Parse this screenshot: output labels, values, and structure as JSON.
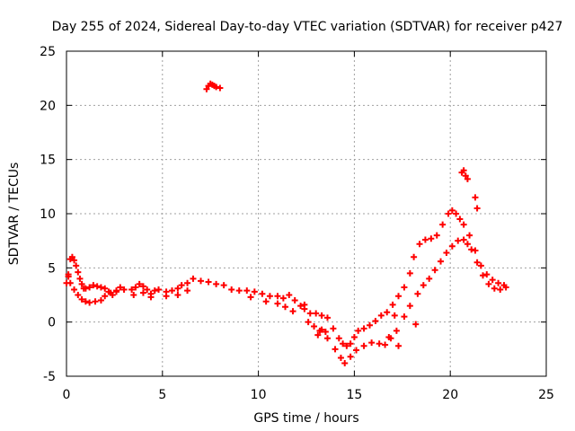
{
  "chart_data": {
    "type": "scatter",
    "title": "Day 255 of 2024, Sidereal Day-to-day VTEC variation (SDTVAR) for receiver p427",
    "xlabel": "GPS time / hours",
    "ylabel": "SDTVAR / TECUs",
    "xlim": [
      0,
      25
    ],
    "ylim": [
      -5,
      25
    ],
    "xticks": [
      0,
      5,
      10,
      15,
      20,
      25
    ],
    "yticks": [
      -5,
      0,
      5,
      10,
      15,
      20,
      25
    ],
    "grid": true,
    "marker": "plus",
    "color": "#ff0000",
    "series": [
      {
        "name": "main track",
        "points": [
          [
            0.0,
            3.6
          ],
          [
            0.1,
            4.2
          ],
          [
            0.2,
            5.8
          ],
          [
            0.3,
            6.0
          ],
          [
            0.4,
            5.7
          ],
          [
            0.5,
            5.2
          ],
          [
            0.6,
            4.6
          ],
          [
            0.7,
            4.0
          ],
          [
            0.8,
            3.5
          ],
          [
            0.9,
            3.1
          ],
          [
            1.0,
            3.1
          ],
          [
            1.2,
            3.2
          ],
          [
            1.4,
            3.4
          ],
          [
            1.6,
            3.3
          ],
          [
            1.8,
            3.2
          ],
          [
            2.0,
            3.1
          ],
          [
            2.2,
            2.8
          ],
          [
            2.4,
            2.5
          ],
          [
            2.6,
            2.9
          ],
          [
            2.8,
            3.2
          ],
          [
            3.0,
            3.0
          ],
          [
            3.4,
            3.0
          ],
          [
            3.6,
            3.2
          ],
          [
            3.8,
            3.5
          ],
          [
            4.0,
            3.3
          ],
          [
            4.2,
            3.0
          ],
          [
            4.4,
            2.6
          ],
          [
            4.6,
            2.9
          ],
          [
            4.8,
            3.0
          ],
          [
            5.2,
            2.8
          ],
          [
            5.5,
            2.9
          ],
          [
            5.8,
            3.1
          ],
          [
            6.0,
            3.4
          ],
          [
            6.3,
            3.6
          ],
          [
            6.6,
            4.0
          ],
          [
            7.0,
            3.8
          ],
          [
            7.4,
            3.7
          ],
          [
            7.8,
            3.5
          ],
          [
            8.2,
            3.4
          ],
          [
            8.6,
            3.0
          ],
          [
            9.0,
            2.9
          ],
          [
            9.4,
            2.9
          ],
          [
            9.8,
            2.8
          ],
          [
            10.2,
            2.6
          ],
          [
            10.6,
            2.4
          ],
          [
            11.0,
            2.4
          ],
          [
            11.3,
            2.2
          ],
          [
            11.6,
            2.5
          ],
          [
            11.9,
            2.0
          ],
          [
            12.2,
            1.5
          ],
          [
            12.4,
            1.2
          ],
          [
            12.7,
            0.8
          ],
          [
            13.0,
            0.8
          ],
          [
            13.3,
            0.6
          ],
          [
            13.6,
            0.4
          ],
          [
            13.9,
            -0.6
          ],
          [
            14.2,
            -1.5
          ],
          [
            14.4,
            -2.0
          ],
          [
            14.6,
            -2.2
          ],
          [
            14.8,
            -2.0
          ],
          [
            15.0,
            -1.4
          ],
          [
            15.2,
            -0.8
          ],
          [
            15.5,
            -0.6
          ],
          [
            15.8,
            -0.3
          ],
          [
            16.1,
            0.1
          ],
          [
            16.4,
            0.6
          ],
          [
            16.7,
            0.9
          ],
          [
            17.0,
            1.6
          ],
          [
            17.3,
            2.4
          ],
          [
            17.6,
            3.2
          ],
          [
            17.9,
            4.5
          ],
          [
            18.1,
            6.0
          ],
          [
            18.4,
            7.2
          ],
          [
            18.7,
            7.6
          ],
          [
            19.0,
            7.7
          ],
          [
            19.3,
            8.0
          ],
          [
            19.6,
            9.0
          ],
          [
            19.9,
            10.0
          ],
          [
            20.1,
            10.3
          ],
          [
            20.3,
            10.0
          ],
          [
            20.5,
            9.5
          ],
          [
            20.7,
            9.0
          ],
          [
            21.0,
            8.0
          ],
          [
            21.3,
            6.6
          ],
          [
            21.6,
            5.2
          ],
          [
            21.9,
            4.4
          ],
          [
            22.2,
            3.9
          ],
          [
            22.5,
            3.6
          ],
          [
            22.8,
            3.4
          ]
        ]
      },
      {
        "name": "lower track",
        "points": [
          [
            0.1,
            4.4
          ],
          [
            0.2,
            3.6
          ],
          [
            0.4,
            3.0
          ],
          [
            0.6,
            2.5
          ],
          [
            0.8,
            2.1
          ],
          [
            1.0,
            1.9
          ],
          [
            1.2,
            1.8
          ],
          [
            1.5,
            1.9
          ],
          [
            1.8,
            2.0
          ],
          [
            2.0,
            2.4
          ],
          [
            2.3,
            2.7
          ],
          [
            2.6,
            2.8
          ],
          [
            3.5,
            2.5
          ],
          [
            4.0,
            2.7
          ],
          [
            4.4,
            2.3
          ],
          [
            5.2,
            2.4
          ],
          [
            5.8,
            2.5
          ],
          [
            6.3,
            2.9
          ],
          [
            9.6,
            2.3
          ],
          [
            10.4,
            1.9
          ],
          [
            11.0,
            1.7
          ],
          [
            11.4,
            1.4
          ],
          [
            11.8,
            1.0
          ],
          [
            12.6,
            0.0
          ],
          [
            12.9,
            -0.4
          ],
          [
            13.2,
            -0.8
          ],
          [
            13.6,
            -1.5
          ],
          [
            14.0,
            -2.5
          ],
          [
            14.3,
            -3.3
          ],
          [
            14.5,
            -3.8
          ],
          [
            14.8,
            -3.2
          ],
          [
            15.1,
            -2.6
          ],
          [
            15.5,
            -2.2
          ],
          [
            15.9,
            -1.9
          ],
          [
            16.3,
            -2.0
          ],
          [
            16.6,
            -2.1
          ],
          [
            16.9,
            -1.5
          ],
          [
            17.2,
            -0.8
          ],
          [
            17.6,
            0.5
          ],
          [
            17.9,
            1.5
          ],
          [
            18.3,
            2.6
          ],
          [
            18.6,
            3.4
          ],
          [
            18.9,
            4.0
          ],
          [
            19.2,
            4.8
          ],
          [
            19.5,
            5.6
          ],
          [
            19.8,
            6.4
          ],
          [
            20.1,
            7.0
          ],
          [
            20.4,
            7.5
          ],
          [
            20.7,
            7.6
          ],
          [
            20.9,
            7.2
          ],
          [
            21.1,
            6.7
          ],
          [
            21.4,
            5.5
          ],
          [
            21.7,
            4.3
          ],
          [
            22.0,
            3.5
          ],
          [
            22.3,
            3.1
          ],
          [
            22.6,
            3.0
          ],
          [
            22.9,
            3.2
          ]
        ]
      },
      {
        "name": "outliers",
        "points": [
          [
            7.3,
            21.5
          ],
          [
            7.4,
            21.8
          ],
          [
            7.5,
            22.0
          ],
          [
            7.6,
            21.9
          ],
          [
            7.7,
            21.8
          ],
          [
            7.8,
            21.7
          ],
          [
            8.0,
            21.6
          ],
          [
            20.6,
            13.8
          ],
          [
            20.7,
            14.0
          ],
          [
            20.8,
            13.5
          ],
          [
            20.9,
            13.2
          ],
          [
            21.3,
            11.5
          ],
          [
            21.4,
            10.5
          ],
          [
            12.4,
            1.6
          ],
          [
            13.3,
            -0.7
          ],
          [
            13.5,
            -0.9
          ],
          [
            13.1,
            -1.2
          ],
          [
            16.8,
            -1.4
          ],
          [
            17.3,
            -2.2
          ],
          [
            18.2,
            -0.2
          ],
          [
            17.1,
            0.6
          ]
        ]
      }
    ]
  }
}
